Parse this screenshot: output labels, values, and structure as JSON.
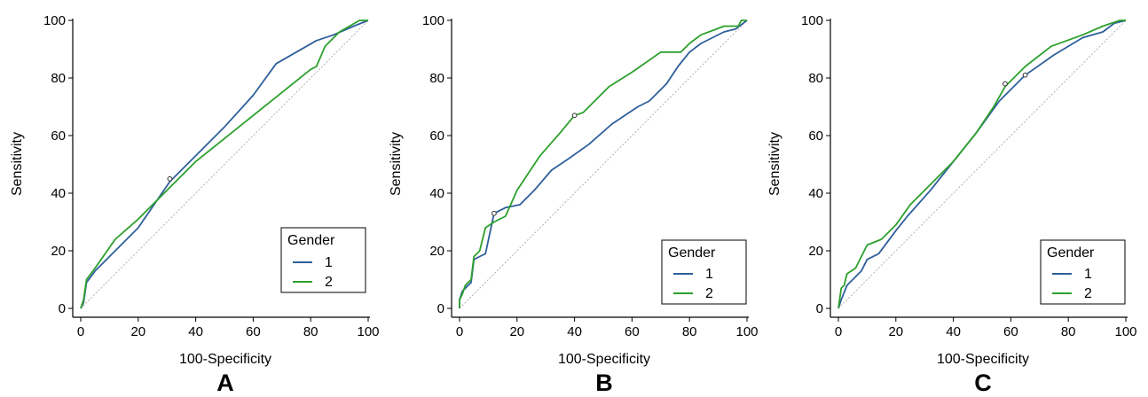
{
  "colors": {
    "series_1": "#2f5f9b",
    "series_2": "#2ca02c",
    "diagonal": "#b0b0b0",
    "axis": "#000000",
    "cutoff_marker_fill": "#ffffff"
  },
  "chart_data": [
    {
      "type": "line",
      "panel_label": "A",
      "xlabel": "100-Specificity",
      "ylabel": "Sensitivity",
      "xlim": [
        0,
        100
      ],
      "ylim": [
        0,
        100
      ],
      "xticks": [
        0,
        20,
        40,
        60,
        80,
        100
      ],
      "yticks": [
        0,
        20,
        40,
        60,
        80,
        100
      ],
      "reference_line": [
        [
          0,
          0
        ],
        [
          100,
          100
        ]
      ],
      "grid": false,
      "legend": {
        "title": "Gender",
        "placement": "bottom-right"
      },
      "series": [
        {
          "name": "1",
          "color_key": "series_1",
          "points": [
            [
              0,
              0
            ],
            [
              1,
              2
            ],
            [
              2,
              9
            ],
            [
              5,
              13
            ],
            [
              12,
              20
            ],
            [
              20,
              28
            ],
            [
              31,
              44
            ],
            [
              40,
              53
            ],
            [
              50,
              63
            ],
            [
              60,
              74
            ],
            [
              68,
              85
            ],
            [
              75,
              89
            ],
            [
              82,
              93
            ],
            [
              88,
              95
            ],
            [
              95,
              98
            ],
            [
              100,
              100
            ]
          ],
          "cutoff": [
            31,
            45
          ]
        },
        {
          "name": "2",
          "color_key": "series_2",
          "points": [
            [
              0,
              0
            ],
            [
              1,
              3
            ],
            [
              2,
              10
            ],
            [
              5,
              14
            ],
            [
              12,
              24
            ],
            [
              20,
              31
            ],
            [
              30,
              41
            ],
            [
              40,
              51
            ],
            [
              50,
              59
            ],
            [
              60,
              67
            ],
            [
              70,
              75
            ],
            [
              80,
              83
            ],
            [
              82,
              84
            ],
            [
              85,
              91
            ],
            [
              90,
              96
            ],
            [
              97,
              100
            ],
            [
              100,
              100
            ]
          ],
          "cutoff": null
        }
      ]
    },
    {
      "type": "line",
      "panel_label": "B",
      "xlabel": "100-Specificity",
      "ylabel": "Sensitivity",
      "xlim": [
        0,
        100
      ],
      "ylim": [
        0,
        100
      ],
      "xticks": [
        0,
        20,
        40,
        60,
        80,
        100
      ],
      "yticks": [
        0,
        20,
        40,
        60,
        80,
        100
      ],
      "reference_line": [
        [
          0,
          0
        ],
        [
          100,
          100
        ]
      ],
      "grid": false,
      "legend": {
        "title": "Gender",
        "placement": "bottom-right"
      },
      "series": [
        {
          "name": "1",
          "color_key": "series_1",
          "points": [
            [
              0,
              0
            ],
            [
              0,
              3
            ],
            [
              1,
              6
            ],
            [
              2,
              7
            ],
            [
              3,
              8
            ],
            [
              4,
              9
            ],
            [
              5,
              17
            ],
            [
              7,
              18
            ],
            [
              9,
              19
            ],
            [
              12,
              33
            ],
            [
              16,
              35
            ],
            [
              21,
              36
            ],
            [
              26,
              41
            ],
            [
              32,
              48
            ],
            [
              38,
              52
            ],
            [
              45,
              57
            ],
            [
              53,
              64
            ],
            [
              62,
              70
            ],
            [
              66,
              72
            ],
            [
              72,
              78
            ],
            [
              76,
              84
            ],
            [
              80,
              89
            ],
            [
              84,
              92
            ],
            [
              88,
              94
            ],
            [
              92,
              96
            ],
            [
              96,
              97
            ],
            [
              100,
              100
            ]
          ],
          "cutoff": [
            12,
            33
          ]
        },
        {
          "name": "2",
          "color_key": "series_2",
          "points": [
            [
              0,
              0
            ],
            [
              0,
              3
            ],
            [
              1,
              5
            ],
            [
              2,
              8
            ],
            [
              4,
              10
            ],
            [
              5,
              18
            ],
            [
              7,
              20
            ],
            [
              9,
              28
            ],
            [
              12,
              30
            ],
            [
              16,
              32
            ],
            [
              20,
              41
            ],
            [
              28,
              53
            ],
            [
              35,
              61
            ],
            [
              40,
              67
            ],
            [
              43,
              68
            ],
            [
              52,
              77
            ],
            [
              60,
              82
            ],
            [
              70,
              89
            ],
            [
              77,
              89
            ],
            [
              80,
              92
            ],
            [
              84,
              95
            ],
            [
              92,
              98
            ],
            [
              97,
              98
            ],
            [
              98,
              100
            ],
            [
              100,
              100
            ]
          ],
          "cutoff": [
            40,
            67
          ]
        }
      ]
    },
    {
      "type": "line",
      "panel_label": "C",
      "xlabel": "100-Specificity",
      "ylabel": "Sensitivity",
      "xlim": [
        0,
        100
      ],
      "ylim": [
        0,
        100
      ],
      "xticks": [
        0,
        20,
        40,
        60,
        80,
        100
      ],
      "yticks": [
        0,
        20,
        40,
        60,
        80,
        100
      ],
      "reference_line": [
        [
          0,
          0
        ],
        [
          100,
          100
        ]
      ],
      "grid": false,
      "legend": {
        "title": "Gender",
        "placement": "bottom-right"
      },
      "series": [
        {
          "name": "1",
          "color_key": "series_1",
          "points": [
            [
              0,
              0
            ],
            [
              1,
              3
            ],
            [
              3,
              8
            ],
            [
              5,
              10
            ],
            [
              8,
              13
            ],
            [
              10,
              17
            ],
            [
              14,
              19
            ],
            [
              20,
              27
            ],
            [
              24,
              32
            ],
            [
              32,
              41
            ],
            [
              40,
              51
            ],
            [
              48,
              61
            ],
            [
              56,
              72
            ],
            [
              65,
              81
            ],
            [
              75,
              88
            ],
            [
              85,
              94
            ],
            [
              92,
              96
            ],
            [
              96,
              99
            ],
            [
              100,
              100
            ]
          ],
          "cutoff": [
            65,
            81
          ]
        },
        {
          "name": "2",
          "color_key": "series_2",
          "points": [
            [
              0,
              0
            ],
            [
              1,
              7
            ],
            [
              2,
              8
            ],
            [
              3,
              12
            ],
            [
              6,
              14
            ],
            [
              8,
              18
            ],
            [
              10,
              22
            ],
            [
              15,
              24
            ],
            [
              20,
              29
            ],
            [
              25,
              36
            ],
            [
              32,
              43
            ],
            [
              40,
              51
            ],
            [
              48,
              61
            ],
            [
              54,
              70
            ],
            [
              58,
              77
            ],
            [
              65,
              84
            ],
            [
              74,
              91
            ],
            [
              85,
              95
            ],
            [
              92,
              98
            ],
            [
              98,
              100
            ],
            [
              100,
              100
            ]
          ],
          "cutoff": [
            58,
            78
          ]
        }
      ]
    }
  ]
}
